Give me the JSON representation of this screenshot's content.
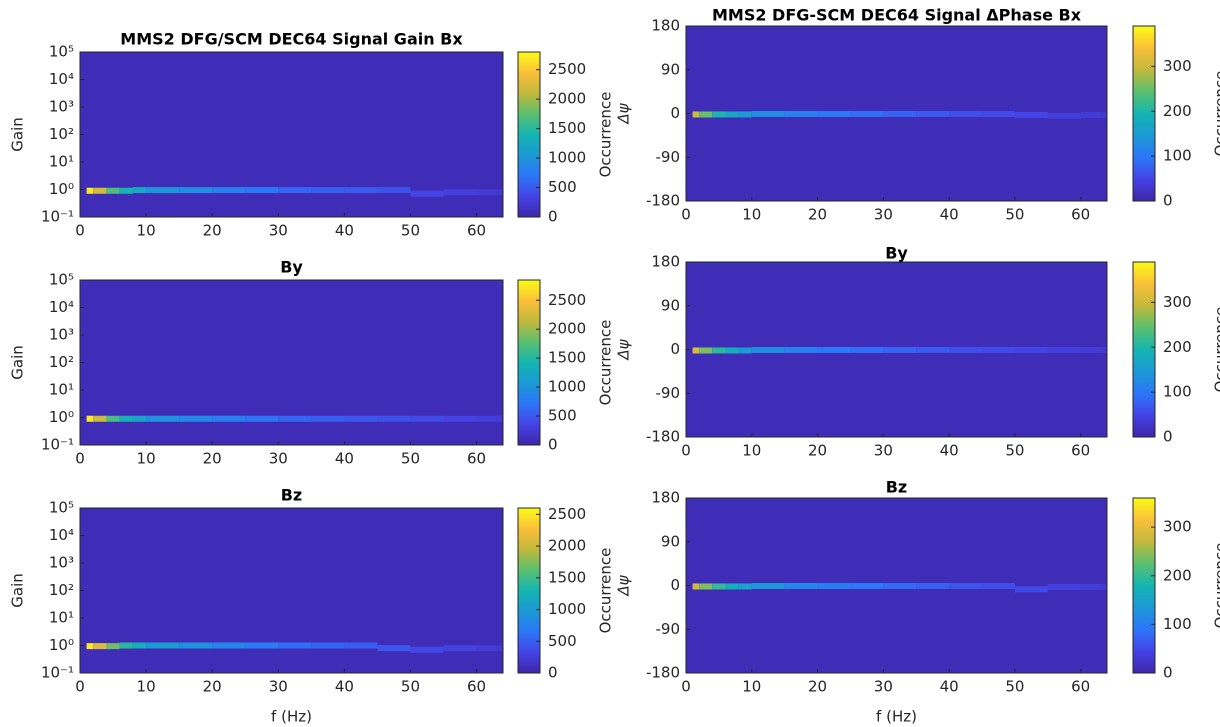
{
  "chart_data": [
    {
      "type": "heatmap",
      "title": "MMS2 DFG/SCM DEC64 Signal Gain Bx",
      "ylabel": "Gain",
      "colorbar_label": "Occurrence",
      "colormap": "parula",
      "log_y": true,
      "xlim": [
        0,
        64
      ],
      "xticks": [
        0,
        10,
        20,
        30,
        40,
        50,
        60
      ],
      "ylim": [
        0.1,
        100000
      ],
      "yticks": [
        {
          "value": 0.1,
          "label": "10⁻¹"
        },
        {
          "value": 1,
          "label": "10⁰"
        },
        {
          "value": 10,
          "label": "10¹"
        },
        {
          "value": 100,
          "label": "10²"
        },
        {
          "value": 1000,
          "label": "10³"
        },
        {
          "value": 10000,
          "label": "10⁴"
        },
        {
          "value": 100000,
          "label": "10⁵"
        }
      ],
      "clim": [
        0,
        2800
      ],
      "cticks": [
        0,
        500,
        1000,
        1500,
        2000,
        2500
      ],
      "x": [
        1,
        2,
        4,
        6,
        8,
        10,
        15,
        20,
        25,
        30,
        35,
        40,
        45,
        50,
        55,
        60,
        63
      ],
      "y": [
        0.9,
        0.9,
        0.9,
        0.9,
        0.95,
        0.95,
        0.95,
        0.95,
        0.95,
        0.95,
        0.95,
        0.95,
        0.95,
        0.7,
        0.8,
        0.8,
        0.8
      ],
      "occurrence": [
        2700,
        2200,
        1700,
        1400,
        1200,
        1000,
        900,
        800,
        700,
        600,
        550,
        500,
        450,
        350,
        300,
        250,
        200
      ]
    },
    {
      "type": "heatmap",
      "title": "MMS2 DFG-SCM DEC64 Signal ΔPhase Bx",
      "ylabel": "Δψ",
      "colorbar_label": "Occurrence",
      "colormap": "parula",
      "log_y": false,
      "xlim": [
        0,
        64
      ],
      "xticks": [
        0,
        10,
        20,
        30,
        40,
        50,
        60
      ],
      "ylim": [
        -180,
        180
      ],
      "yticks": [
        -180,
        -90,
        0,
        90,
        180
      ],
      "clim": [
        0,
        390
      ],
      "cticks": [
        0,
        100,
        200,
        300
      ],
      "x": [
        1,
        2,
        4,
        6,
        8,
        10,
        15,
        20,
        25,
        30,
        35,
        40,
        45,
        50,
        55,
        60,
        63
      ],
      "y": [
        -2,
        -2,
        -2,
        -2,
        -2,
        -1,
        -1,
        -1,
        -1,
        -1,
        -1,
        -1,
        -1,
        -3,
        -5,
        -3,
        -3
      ],
      "occurrence": [
        300,
        250,
        200,
        170,
        150,
        130,
        110,
        100,
        90,
        80,
        70,
        60,
        55,
        50,
        40,
        35,
        30
      ]
    },
    {
      "type": "heatmap",
      "title": "By",
      "ylabel": "Gain",
      "colorbar_label": "Occurrence",
      "colormap": "parula",
      "log_y": true,
      "xlim": [
        0,
        64
      ],
      "xticks": [
        0,
        10,
        20,
        30,
        40,
        50,
        60
      ],
      "ylim": [
        0.1,
        100000
      ],
      "yticks": [
        {
          "value": 0.1,
          "label": "10⁻¹"
        },
        {
          "value": 1,
          "label": "10⁰"
        },
        {
          "value": 10,
          "label": "10¹"
        },
        {
          "value": 100,
          "label": "10²"
        },
        {
          "value": 1000,
          "label": "10³"
        },
        {
          "value": 10000,
          "label": "10⁴"
        },
        {
          "value": 100000,
          "label": "10⁵"
        }
      ],
      "clim": [
        0,
        2850
      ],
      "cticks": [
        0,
        500,
        1000,
        1500,
        2000,
        2500
      ],
      "x": [
        1,
        2,
        4,
        6,
        8,
        10,
        15,
        20,
        25,
        30,
        35,
        40,
        45,
        50,
        55,
        60,
        63
      ],
      "y": [
        0.9,
        0.9,
        0.9,
        0.9,
        0.9,
        0.9,
        0.9,
        0.9,
        0.9,
        0.9,
        0.9,
        0.9,
        0.9,
        0.9,
        0.9,
        0.9,
        0.9
      ],
      "occurrence": [
        2750,
        2200,
        1700,
        1400,
        1200,
        1000,
        900,
        800,
        700,
        600,
        550,
        500,
        450,
        400,
        350,
        300,
        250
      ]
    },
    {
      "type": "heatmap",
      "title": "By",
      "ylabel": "Δψ",
      "colorbar_label": "Occurrence",
      "colormap": "parula",
      "log_y": false,
      "xlim": [
        0,
        64
      ],
      "xticks": [
        0,
        10,
        20,
        30,
        40,
        50,
        60
      ],
      "ylim": [
        -180,
        180
      ],
      "yticks": [
        -180,
        -90,
        0,
        90,
        180
      ],
      "clim": [
        0,
        390
      ],
      "cticks": [
        0,
        100,
        200,
        300
      ],
      "x": [
        1,
        2,
        4,
        6,
        8,
        10,
        15,
        20,
        25,
        30,
        35,
        40,
        45,
        50,
        55,
        60,
        63
      ],
      "y": [
        -2,
        -2,
        -2,
        -2,
        -2,
        -1,
        -1,
        -1,
        -1,
        -1,
        -1,
        -1,
        -1,
        -1,
        -1,
        -1,
        -1
      ],
      "occurrence": [
        310,
        260,
        210,
        180,
        150,
        130,
        110,
        100,
        90,
        80,
        70,
        60,
        55,
        50,
        40,
        35,
        30
      ]
    },
    {
      "type": "heatmap",
      "title": "Bz",
      "xlabel": "f (Hz)",
      "ylabel": "Gain",
      "colorbar_label": "Occurrence",
      "colormap": "parula",
      "log_y": true,
      "xlim": [
        0,
        64
      ],
      "xticks": [
        0,
        10,
        20,
        30,
        40,
        50,
        60
      ],
      "ylim": [
        0.1,
        100000
      ],
      "yticks": [
        {
          "value": 0.1,
          "label": "10⁻¹"
        },
        {
          "value": 1,
          "label": "10⁰"
        },
        {
          "value": 10,
          "label": "10¹"
        },
        {
          "value": 100,
          "label": "10²"
        },
        {
          "value": 1000,
          "label": "10³"
        },
        {
          "value": 10000,
          "label": "10⁴"
        },
        {
          "value": 100000,
          "label": "10⁵"
        }
      ],
      "clim": [
        0,
        2600
      ],
      "cticks": [
        0,
        500,
        1000,
        1500,
        2000,
        2500
      ],
      "x": [
        1,
        2,
        4,
        6,
        8,
        10,
        15,
        20,
        25,
        30,
        35,
        40,
        45,
        50,
        55,
        60,
        63
      ],
      "y": [
        0.95,
        0.95,
        0.95,
        1,
        1,
        1,
        1,
        1,
        1,
        1,
        1,
        1,
        0.8,
        0.7,
        0.8,
        0.8,
        0.8
      ],
      "occurrence": [
        2500,
        2100,
        1700,
        1400,
        1200,
        1000,
        900,
        800,
        700,
        600,
        550,
        500,
        450,
        350,
        300,
        250,
        200
      ]
    },
    {
      "type": "heatmap",
      "title": "Bz",
      "xlabel": "f (Hz)",
      "ylabel": "Δψ",
      "colorbar_label": "Occurrence",
      "colormap": "parula",
      "log_y": false,
      "xlim": [
        0,
        64
      ],
      "xticks": [
        0,
        10,
        20,
        30,
        40,
        50,
        60
      ],
      "ylim": [
        -180,
        180
      ],
      "yticks": [
        -180,
        -90,
        0,
        90,
        180
      ],
      "clim": [
        0,
        360
      ],
      "cticks": [
        0,
        100,
        200,
        300
      ],
      "x": [
        1,
        2,
        4,
        6,
        8,
        10,
        15,
        20,
        25,
        30,
        35,
        40,
        45,
        50,
        55,
        60,
        63
      ],
      "y": [
        -2,
        -2,
        -2,
        -2,
        -2,
        -1,
        -1,
        -1,
        -1,
        -1,
        -1,
        -1,
        -1,
        -8,
        -3,
        -3,
        -3
      ],
      "occurrence": [
        280,
        240,
        200,
        170,
        150,
        130,
        110,
        100,
        90,
        80,
        70,
        60,
        55,
        50,
        40,
        35,
        30
      ]
    }
  ]
}
